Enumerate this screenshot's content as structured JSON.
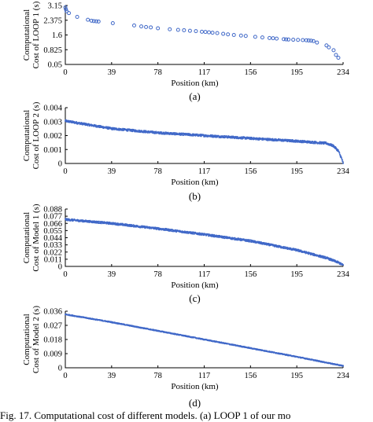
{
  "figure_caption": "Fig. 17.   Computational cost of different models. (a) LOOP 1 of our mo",
  "colors": {
    "series": "#4169c8",
    "axis": "#000000"
  },
  "chart_data": [
    {
      "type": "scatter",
      "panel_label": "(a)",
      "xlabel": "Position (km)",
      "ylabel_lines": [
        "Computational",
        "Cost of LOOP 1 (s)"
      ],
      "x_ticks": [
        "0",
        "39",
        "78",
        "117",
        "156",
        "195",
        "234"
      ],
      "y_ticks": [
        "0.05",
        "0.825",
        "1.6",
        "2.375",
        "3.15"
      ],
      "xlim": [
        0,
        234
      ],
      "ylim": [
        0.05,
        3.15
      ],
      "x": [
        0,
        0.5,
        1,
        3,
        10,
        19,
        22,
        24,
        26,
        28,
        40,
        58,
        64,
        68,
        72,
        78,
        88,
        95,
        100,
        105,
        110,
        115,
        118,
        121,
        124,
        128,
        133,
        137,
        142,
        148,
        152,
        160,
        166,
        172,
        175,
        178,
        184,
        186,
        188,
        192,
        196,
        200,
        203,
        205,
        207,
        209,
        212,
        220,
        222,
        226,
        228,
        230
      ],
      "y": [
        3.05,
        2.95,
        2.85,
        2.75,
        2.55,
        2.4,
        2.35,
        2.33,
        2.32,
        2.31,
        2.22,
        2.1,
        2.05,
        2.02,
        2.0,
        1.95,
        1.9,
        1.87,
        1.85,
        1.82,
        1.8,
        1.77,
        1.76,
        1.74,
        1.72,
        1.7,
        1.66,
        1.63,
        1.6,
        1.57,
        1.55,
        1.5,
        1.47,
        1.44,
        1.43,
        1.41,
        1.38,
        1.37,
        1.36,
        1.35,
        1.34,
        1.33,
        1.32,
        1.31,
        1.3,
        1.28,
        1.2,
        1.05,
        0.95,
        0.8,
        0.55,
        0.4
      ]
    },
    {
      "type": "scatter",
      "panel_label": "(b)",
      "xlabel": "Position (km)",
      "ylabel_lines": [
        "Computational",
        "Cost of LOOP 2 (s)"
      ],
      "x_ticks": [
        "0",
        "39",
        "78",
        "117",
        "156",
        "195",
        "234"
      ],
      "y_ticks": [
        "0",
        "0.001",
        "0.002",
        "0.003",
        "0.004"
      ],
      "xlim": [
        0,
        234
      ],
      "ylim": [
        0,
        0.004
      ],
      "trend": [
        [
          0,
          0.00305
        ],
        [
          39,
          0.0025
        ],
        [
          78,
          0.0022
        ],
        [
          117,
          0.002
        ],
        [
          156,
          0.0018
        ],
        [
          195,
          0.0016
        ],
        [
          220,
          0.00145
        ],
        [
          226,
          0.00125
        ],
        [
          230,
          0.0009
        ],
        [
          233,
          0.0003
        ],
        [
          234,
          0.0
        ]
      ],
      "spread": 8e-05
    },
    {
      "type": "scatter",
      "panel_label": "(c)",
      "xlabel": "Position (km)",
      "ylabel_lines": [
        "Computational",
        "Cost of Model 1 (s)"
      ],
      "x_ticks": [
        "0",
        "39",
        "78",
        "117",
        "156",
        "195",
        "234"
      ],
      "y_ticks": [
        "0",
        "0.011",
        "0.022",
        "0.033",
        "0.044",
        "0.055",
        "0.066",
        "0.077",
        "0.088"
      ],
      "xlim": [
        0,
        234
      ],
      "ylim": [
        0,
        0.088
      ],
      "trend": [
        [
          0,
          0.072
        ],
        [
          39,
          0.066
        ],
        [
          78,
          0.058
        ],
        [
          117,
          0.049
        ],
        [
          156,
          0.039
        ],
        [
          195,
          0.025
        ],
        [
          220,
          0.013
        ],
        [
          230,
          0.006
        ],
        [
          234,
          0.002
        ]
      ],
      "spread": 0.0016
    },
    {
      "type": "scatter",
      "panel_label": "(d)",
      "xlabel": "Position (km)",
      "ylabel_lines": [
        "Computational",
        "Cost of Model 2 (s)"
      ],
      "x_ticks": [
        "0",
        "39",
        "78",
        "117",
        "156",
        "195",
        "234"
      ],
      "y_ticks": [
        "0",
        "0.009",
        "0.018",
        "0.027",
        "0.036"
      ],
      "xlim": [
        0,
        234
      ],
      "ylim": [
        0,
        0.036
      ],
      "trend": [
        [
          0,
          0.034
        ],
        [
          39,
          0.029
        ],
        [
          78,
          0.0235
        ],
        [
          117,
          0.018
        ],
        [
          156,
          0.0125
        ],
        [
          195,
          0.007
        ],
        [
          234,
          0.0012
        ]
      ],
      "spread": 0.0003
    }
  ]
}
